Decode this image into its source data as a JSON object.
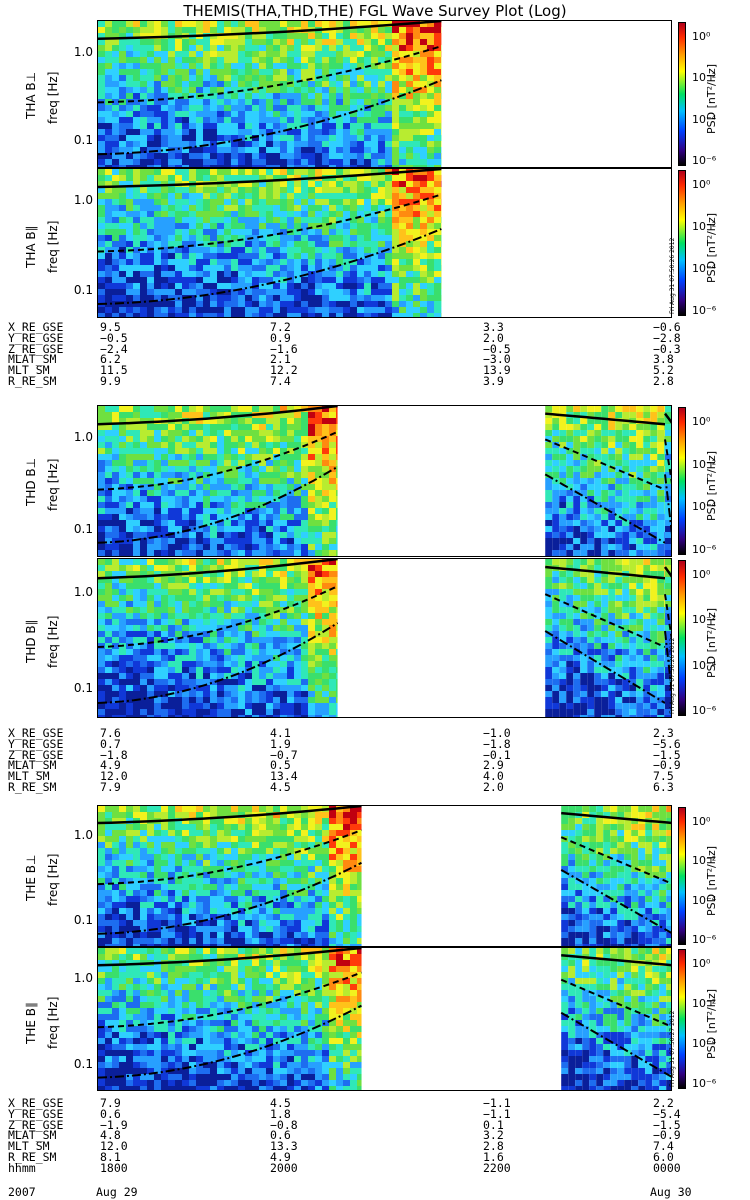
{
  "title": "THEMIS(THA,THD,THE) FGL Wave Survey Plot (Log)",
  "colorbar": {
    "title": "PSD [nT²/Hz]",
    "ticks": [
      "10⁰",
      "10⁻²",
      "10⁻⁴",
      "10⁻⁶"
    ],
    "stamps": [
      "Fri Aug 31 07:50:26 2012",
      "Fri Aug 31 07:50:26 2012",
      "Fri Aug 31 07:50:27 2012"
    ]
  },
  "chart_data": [
    {
      "type": "heatmap",
      "probe": "THA",
      "component": "perp",
      "ylabel": "THA B⊥",
      "yunit": "freq [Hz]",
      "scale": "log",
      "yticks": [
        "1.0",
        "0.1"
      ],
      "data_windows_hhmm": [
        [
          "1800",
          "2135"
        ]
      ],
      "lines": [
        "solid",
        "dashed",
        "dash-dot"
      ]
    },
    {
      "type": "heatmap",
      "probe": "THA",
      "component": "par",
      "ylabel": "THA B∥",
      "yunit": "freq [Hz]",
      "scale": "log",
      "yticks": [
        "1.0",
        "0.1"
      ],
      "data_windows_hhmm": [
        [
          "1800",
          "2135"
        ]
      ]
    },
    {
      "type": "heatmap",
      "probe": "THD",
      "component": "perp",
      "ylabel": "THD B⊥",
      "yunit": "freq [Hz]",
      "scale": "log",
      "yticks": [
        "1.0",
        "0.1"
      ],
      "data_windows_hhmm": [
        [
          "1800",
          "2030"
        ],
        [
          "2240",
          "2355"
        ],
        [
          "2355",
          "0000"
        ]
      ]
    },
    {
      "type": "heatmap",
      "probe": "THD",
      "component": "par",
      "ylabel": "THD B∥",
      "yunit": "freq [Hz]",
      "scale": "log",
      "yticks": [
        "1.0",
        "0.1"
      ],
      "data_windows_hhmm": [
        [
          "1800",
          "2030"
        ],
        [
          "2240",
          "2355"
        ],
        [
          "2355",
          "0000"
        ]
      ]
    },
    {
      "type": "heatmap",
      "probe": "THE",
      "component": "perp",
      "ylabel": "THE B⊥",
      "yunit": "freq [Hz]",
      "scale": "log",
      "yticks": [
        "1.0",
        "0.1"
      ],
      "data_windows_hhmm": [
        [
          "1800",
          "2045"
        ],
        [
          "2250",
          "0000"
        ]
      ]
    },
    {
      "type": "heatmap",
      "probe": "THE",
      "component": "par",
      "ylabel": "THE B∥",
      "yunit": "freq [Hz]",
      "scale": "log",
      "yticks": [
        "1.0",
        "0.1"
      ],
      "data_windows_hhmm": [
        [
          "1800",
          "2045"
        ],
        [
          "2250",
          "0000"
        ]
      ]
    }
  ],
  "ephemeris": [
    {
      "probe": "THA",
      "rows": [
        {
          "label": "X_RE_GSE",
          "values": [
            "9.5",
            "7.2",
            "3.3",
            "-0.6"
          ]
        },
        {
          "label": "Y_RE_GSE",
          "values": [
            "-0.5",
            "0.9",
            "2.0",
            "-2.8"
          ]
        },
        {
          "label": "Z_RE_GSE",
          "values": [
            "-2.4",
            "-1.6",
            "-0.5",
            "-0.3"
          ]
        },
        {
          "label": "MLAT_SM",
          "values": [
            "6.2",
            "2.1",
            "-3.0",
            "3.8"
          ]
        },
        {
          "label": "MLT_SM",
          "values": [
            "11.5",
            "12.2",
            "13.9",
            "5.2"
          ]
        },
        {
          "label": "R_RE_SM",
          "values": [
            "9.9",
            "7.4",
            "3.9",
            "2.8"
          ]
        }
      ]
    },
    {
      "probe": "THD",
      "rows": [
        {
          "label": "X_RE_GSE",
          "values": [
            "7.6",
            "4.1",
            "-1.0",
            "2.3"
          ]
        },
        {
          "label": "Y_RE_GSE",
          "values": [
            "0.7",
            "1.9",
            "-1.8",
            "-5.6"
          ]
        },
        {
          "label": "Z_RE_GSE",
          "values": [
            "-1.8",
            "-0.7",
            "-0.1",
            "-1.5"
          ]
        },
        {
          "label": "MLAT_SM",
          "values": [
            "4.9",
            "0.5",
            "2.9",
            "-0.9"
          ]
        },
        {
          "label": "MLT_SM",
          "values": [
            "12.0",
            "13.4",
            "4.0",
            "7.5"
          ]
        },
        {
          "label": "R_RE_SM",
          "values": [
            "7.9",
            "4.5",
            "2.0",
            "6.3"
          ]
        }
      ]
    },
    {
      "probe": "THE",
      "rows": [
        {
          "label": "X_RE_GSE",
          "values": [
            "7.9",
            "4.5",
            "-1.1",
            "2.2"
          ]
        },
        {
          "label": "Y_RE_GSE",
          "values": [
            "0.6",
            "1.8",
            "-1.1",
            "-5.4"
          ]
        },
        {
          "label": "Z_RE_GSE",
          "values": [
            "-1.9",
            "-0.8",
            "0.1",
            "-1.5"
          ]
        },
        {
          "label": "MLAT_SM",
          "values": [
            "4.8",
            "0.6",
            "3.2",
            "-0.9"
          ]
        },
        {
          "label": "MLT_SM",
          "values": [
            "12.0",
            "13.3",
            "2.8",
            "7.4"
          ]
        },
        {
          "label": "R_RE_SM",
          "values": [
            "8.1",
            "4.9",
            "1.6",
            "6.0"
          ]
        },
        {
          "label": "hhmm",
          "values": [
            "1800",
            "2000",
            "2200",
            "0000"
          ]
        }
      ]
    }
  ],
  "date_row": {
    "year": "2007",
    "start": "Aug 29",
    "end": "Aug 30"
  }
}
